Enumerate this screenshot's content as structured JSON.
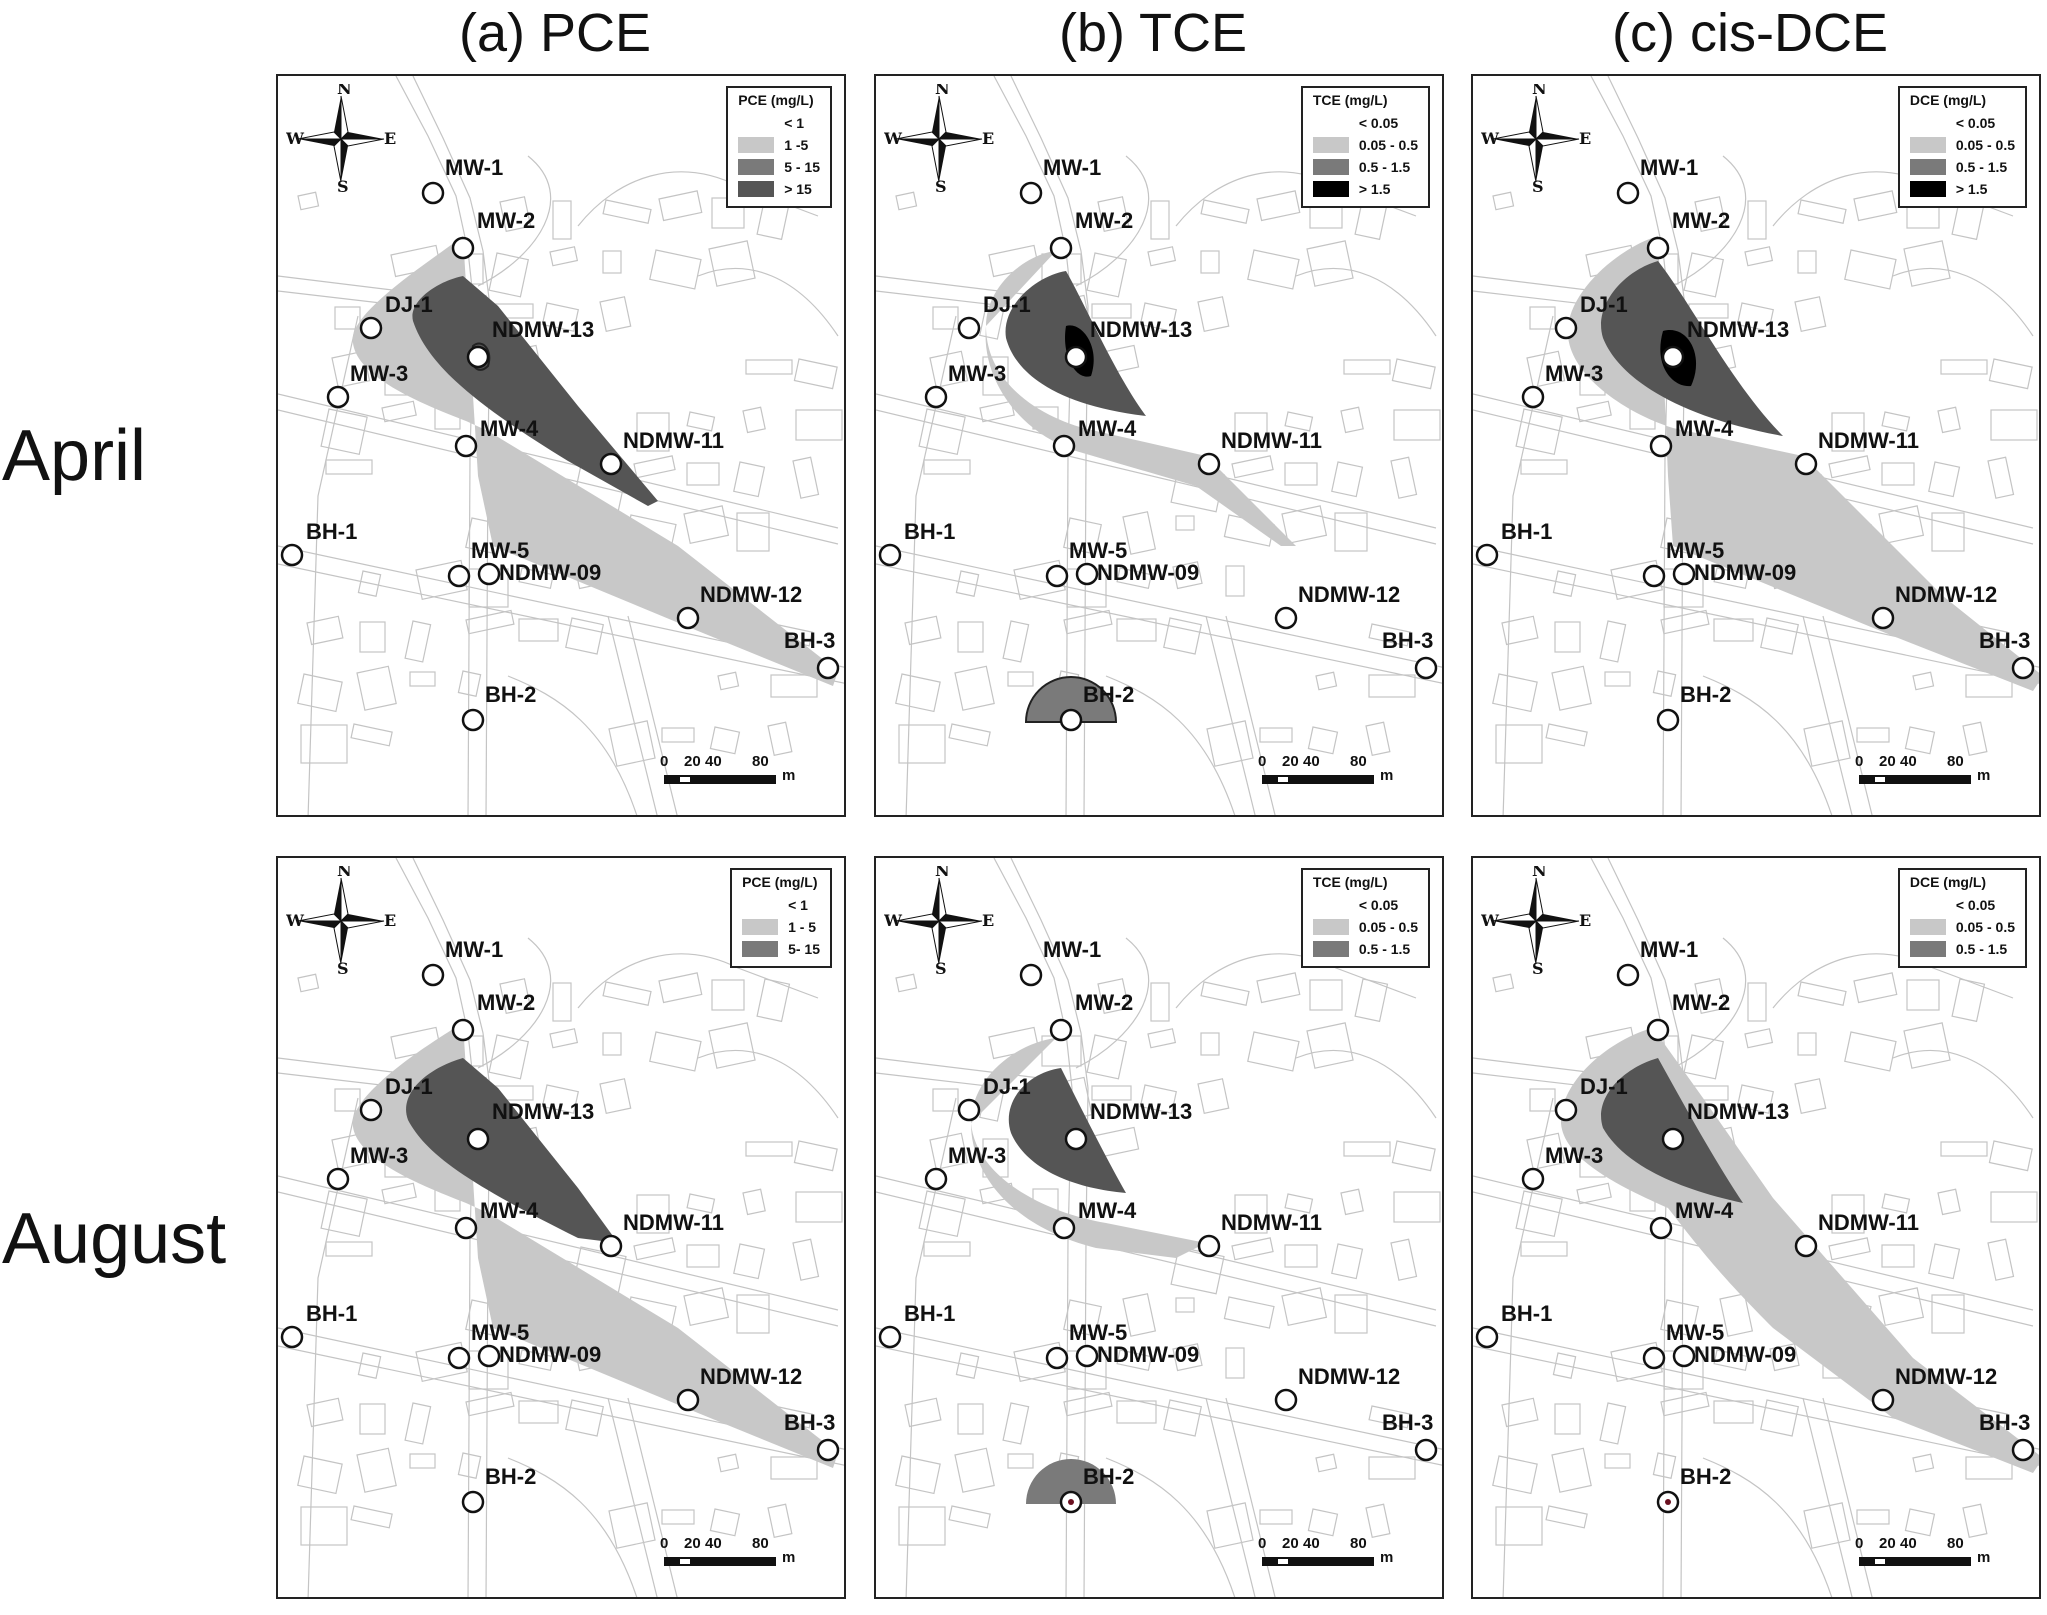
{
  "columns": [
    {
      "title": "(a) PCE"
    },
    {
      "title": "(b) TCE"
    },
    {
      "title": "(c) cis-DCE"
    }
  ],
  "rows": [
    {
      "title": "April"
    },
    {
      "title": "August"
    }
  ],
  "compass": {
    "n": "N",
    "s": "S",
    "e": "E",
    "w": "W"
  },
  "scale": {
    "ticks": [
      "0",
      "20",
      "40",
      "80"
    ],
    "unit": "m"
  },
  "wells": [
    "MW-1",
    "MW-2",
    "DJ-1",
    "NDMW-13",
    "MW-3",
    "MW-4",
    "NDMW-11",
    "BH-1",
    "MW-5",
    "NDMW-09",
    "NDMW-12",
    "BH-3",
    "BH-2"
  ],
  "colors": {
    "class0": "#ffffff",
    "class1": "#c8c8c8",
    "class2": "#7a7a7a",
    "class3": "#555555",
    "class4": "#000000"
  },
  "panels": [
    {
      "name": "april-pce",
      "legend_title": "PCE (mg/L)",
      "legend": [
        {
          "label": "< 1",
          "level": 0
        },
        {
          "label": "1 -5",
          "level": 1
        },
        {
          "label": "5 - 15",
          "level": 2
        },
        {
          "label": "> 15",
          "level": 3
        }
      ]
    },
    {
      "name": "april-tce",
      "legend_title": "TCE (mg/L)",
      "legend": [
        {
          "label": "< 0.05",
          "level": 0
        },
        {
          "label": "0.05 - 0.5",
          "level": 1
        },
        {
          "label": "0.5 - 1.5",
          "level": 2
        },
        {
          "label": "> 1.5",
          "level": 4
        }
      ]
    },
    {
      "name": "april-dce",
      "legend_title": "DCE (mg/L)",
      "legend": [
        {
          "label": "< 0.05",
          "level": 0
        },
        {
          "label": "0.05 - 0.5",
          "level": 1
        },
        {
          "label": "0.5 - 1.5",
          "level": 2
        },
        {
          "label": "> 1.5",
          "level": 4
        }
      ]
    },
    {
      "name": "august-pce",
      "legend_title": "PCE (mg/L)",
      "legend": [
        {
          "label": "< 1",
          "level": 0
        },
        {
          "label": "1 - 5",
          "level": 1
        },
        {
          "label": "5- 15",
          "level": 2
        }
      ]
    },
    {
      "name": "august-tce",
      "legend_title": "TCE (mg/L)",
      "legend": [
        {
          "label": "< 0.05",
          "level": 0
        },
        {
          "label": "0.05 - 0.5",
          "level": 1
        },
        {
          "label": "0.5 - 1.5",
          "level": 2
        }
      ]
    },
    {
      "name": "august-dce",
      "legend_title": "DCE (mg/L)",
      "legend": [
        {
          "label": "< 0.05",
          "level": 0
        },
        {
          "label": "0.05 - 0.5",
          "level": 1
        },
        {
          "label": "0.5 - 1.5",
          "level": 2
        }
      ]
    }
  ]
}
